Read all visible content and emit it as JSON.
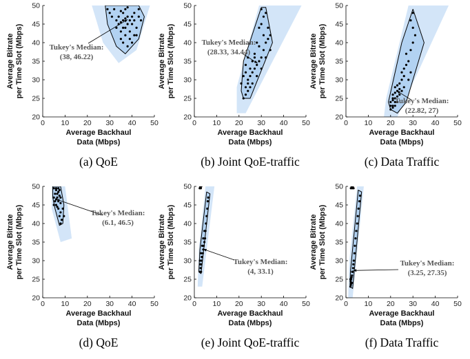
{
  "figure": {
    "panels": [
      {
        "caption": "(a) QoE",
        "xlabel_line1": "Average Backhaul",
        "xlabel_line2": "Data (Mbps)",
        "ylabel_line1": "Average Bitrate",
        "ylabel_line2": "per Time Slot (Mbps)",
        "annot_line1": "Tukey's Median:",
        "annot_line2": "(38, 46.22)"
      },
      {
        "caption": "(b) Joint QoE-traffic",
        "xlabel_line1": "Average Backhaul",
        "xlabel_line2": "Data (Mbps)",
        "ylabel_line1": "Average Bitrate",
        "ylabel_line2": "per Time Slot (Mbps)",
        "annot_line1": "Tukey's Median:",
        "annot_line2": "(28.33, 34.44)"
      },
      {
        "caption": "(c) Data Traffic",
        "xlabel_line1": "Average Backhaul",
        "xlabel_line2": "Data (Mbps)",
        "ylabel_line1": "Average Bitrate",
        "ylabel_line2": "per Time Slot (Mbps)",
        "annot_line1": "Tukey's Median:",
        "annot_line2": "(22.82, 27)"
      },
      {
        "caption": "(d) QoE",
        "xlabel_line1": "Average Backhaul",
        "xlabel_line2": "Data (Mbps)",
        "ylabel_line1": "Average Bitrate",
        "ylabel_line2": "per Time Slot (Mbps)",
        "annot_line1": "Tukey's Median:",
        "annot_line2": "(6.1, 46.5)"
      },
      {
        "caption": "(e) Joint QoE-traffic",
        "xlabel_line1": "Average Backhaul",
        "xlabel_line2": "Data (Mbps)",
        "ylabel_line1": "Average Bitrate",
        "ylabel_line2": "per Time Slot (Mbps)",
        "annot_line1": "Tukey's Median:",
        "annot_line2": "(4, 33.1)"
      },
      {
        "caption": "(f) Data Traffic",
        "xlabel_line1": "Average Backhaul",
        "xlabel_line2": "Data (Mbps)",
        "ylabel_line1": "Average Bitrate",
        "ylabel_line2": "per Time Slot (Mbps)",
        "annot_line1": "Tukey's Median:",
        "annot_line2": "(3.25, 27.35)"
      }
    ]
  },
  "colors": {
    "cone_fill": "#d3e5f8",
    "hull_fill": "#b2d2f2",
    "hull_stroke": "#000000",
    "point": "#000000",
    "axis": "#000000"
  },
  "chart_data": [
    {
      "type": "scatter",
      "xlim": [
        0,
        50
      ],
      "ylim": [
        20,
        50
      ],
      "xticks": [
        0,
        10,
        20,
        30,
        40,
        50
      ],
      "yticks": [
        20,
        25,
        30,
        35,
        40,
        45,
        50
      ],
      "median": [
        38,
        46.22
      ],
      "cone": [
        [
          22,
          50
        ],
        [
          48,
          50
        ],
        [
          42,
          38
        ],
        [
          34,
          34.5
        ],
        [
          27,
          40
        ]
      ],
      "hull": [
        [
          28,
          50
        ],
        [
          43,
          50
        ],
        [
          45.5,
          47
        ],
        [
          43,
          41
        ],
        [
          37,
          37
        ],
        [
          33,
          39
        ],
        [
          29,
          45
        ]
      ],
      "points": [
        [
          32,
          49
        ],
        [
          35,
          48.5
        ],
        [
          38,
          49.5
        ],
        [
          41,
          48
        ],
        [
          43,
          47
        ],
        [
          36,
          46
        ],
        [
          34,
          45
        ],
        [
          40,
          45
        ],
        [
          39,
          43
        ],
        [
          37,
          42
        ],
        [
          35,
          41
        ],
        [
          33,
          44
        ],
        [
          31,
          47
        ],
        [
          30,
          48
        ],
        [
          42,
          44
        ],
        [
          44,
          46
        ],
        [
          36,
          48
        ],
        [
          38,
          47
        ],
        [
          40,
          47
        ],
        [
          33,
          46
        ],
        [
          37,
          44
        ],
        [
          39,
          46
        ],
        [
          41,
          46
        ],
        [
          35,
          43
        ],
        [
          36,
          40
        ],
        [
          38,
          39
        ],
        [
          40,
          40
        ],
        [
          42,
          42
        ],
        [
          34,
          47
        ],
        [
          29,
          49
        ],
        [
          43,
          49
        ],
        [
          37,
          49
        ],
        [
          36,
          44
        ],
        [
          38,
          45
        ],
        [
          39,
          41
        ],
        [
          41,
          42
        ],
        [
          37,
          46.5
        ],
        [
          35,
          45.5
        ]
      ]
    },
    {
      "type": "scatter",
      "xlim": [
        0,
        50
      ],
      "ylim": [
        20,
        50
      ],
      "xticks": [
        0,
        10,
        20,
        30,
        40,
        50
      ],
      "yticks": [
        20,
        25,
        30,
        35,
        40,
        45,
        50
      ],
      "median": [
        28.33,
        34.44
      ],
      "cone": [
        [
          19,
          21
        ],
        [
          23,
          21
        ],
        [
          48,
          50
        ],
        [
          29,
          50
        ],
        [
          19,
          28
        ]
      ],
      "hull": [
        [
          22,
          25
        ],
        [
          25,
          25
        ],
        [
          35,
          40
        ],
        [
          32,
          49.5
        ],
        [
          30,
          49.5
        ],
        [
          22,
          35
        ],
        [
          21,
          27
        ]
      ],
      "points": [
        [
          22,
          25
        ],
        [
          23,
          26
        ],
        [
          24,
          27
        ],
        [
          23,
          28
        ],
        [
          24,
          30
        ],
        [
          25,
          31
        ],
        [
          26,
          32
        ],
        [
          27,
          33
        ],
        [
          28,
          34
        ],
        [
          29,
          35
        ],
        [
          30,
          36
        ],
        [
          31,
          38
        ],
        [
          32,
          40
        ],
        [
          33,
          41
        ],
        [
          34,
          42
        ],
        [
          30,
          45
        ],
        [
          31,
          47
        ],
        [
          32,
          48
        ],
        [
          30,
          49
        ],
        [
          29,
          44
        ],
        [
          28,
          40
        ],
        [
          27,
          37
        ],
        [
          26,
          35
        ],
        [
          25,
          33
        ],
        [
          24,
          36
        ],
        [
          23,
          34
        ],
        [
          22,
          31
        ],
        [
          24,
          29
        ],
        [
          26,
          29
        ],
        [
          28,
          31
        ],
        [
          30,
          33
        ],
        [
          32,
          36
        ],
        [
          34,
          38
        ],
        [
          33,
          44
        ],
        [
          31,
          42
        ],
        [
          29,
          39
        ],
        [
          27,
          36
        ],
        [
          23,
          32
        ],
        [
          25,
          28
        ],
        [
          21,
          29
        ]
      ]
    },
    {
      "type": "scatter",
      "xlim": [
        0,
        50
      ],
      "ylim": [
        20,
        50
      ],
      "xticks": [
        0,
        10,
        20,
        30,
        40,
        50
      ],
      "yticks": [
        20,
        25,
        30,
        35,
        40,
        45,
        50
      ],
      "median": [
        22.82,
        27
      ],
      "cone": [
        [
          17,
          20
        ],
        [
          23,
          20
        ],
        [
          46,
          50
        ],
        [
          28,
          50
        ],
        [
          18,
          25
        ]
      ],
      "hull": [
        [
          20,
          22
        ],
        [
          23,
          21
        ],
        [
          27,
          24
        ],
        [
          35,
          40
        ],
        [
          30,
          49
        ],
        [
          25,
          40
        ],
        [
          19,
          24
        ]
      ],
      "points": [
        [
          20,
          22
        ],
        [
          21,
          23
        ],
        [
          22,
          23
        ],
        [
          20,
          24
        ],
        [
          21,
          24.5
        ],
        [
          22,
          25
        ],
        [
          23,
          25.5
        ],
        [
          21,
          26
        ],
        [
          22,
          26.5
        ],
        [
          23,
          27
        ],
        [
          24,
          27.5
        ],
        [
          22,
          28
        ],
        [
          23,
          28.5
        ],
        [
          24,
          29
        ],
        [
          25,
          30
        ],
        [
          26,
          31
        ],
        [
          25,
          32
        ],
        [
          26,
          33
        ],
        [
          27,
          34
        ],
        [
          28,
          35
        ],
        [
          27,
          37
        ],
        [
          29,
          38
        ],
        [
          30,
          40
        ],
        [
          31,
          42
        ],
        [
          30,
          44
        ],
        [
          29,
          46
        ],
        [
          30,
          48
        ],
        [
          21,
          22.5
        ],
        [
          20,
          23
        ],
        [
          22,
          24
        ],
        [
          23,
          24
        ],
        [
          21,
          25
        ],
        [
          24,
          26
        ],
        [
          25,
          27
        ],
        [
          26,
          28
        ],
        [
          28,
          30
        ],
        [
          29,
          32
        ]
      ]
    },
    {
      "type": "scatter",
      "xlim": [
        0,
        50
      ],
      "ylim": [
        20,
        50
      ],
      "xticks": [
        0,
        10,
        20,
        30,
        40,
        50
      ],
      "yticks": [
        20,
        25,
        30,
        35,
        40,
        45,
        50
      ],
      "median": [
        6.1,
        46.5
      ],
      "cone": [
        [
          4,
          50
        ],
        [
          10,
          50
        ],
        [
          13,
          36
        ],
        [
          8,
          35
        ],
        [
          4,
          44
        ]
      ],
      "hull": [
        [
          4.5,
          50
        ],
        [
          8,
          50
        ],
        [
          9.5,
          45
        ],
        [
          9,
          40
        ],
        [
          7.5,
          39.5
        ],
        [
          5.5,
          44
        ],
        [
          4.5,
          47
        ]
      ],
      "points": [
        [
          5,
          49.5
        ],
        [
          6,
          49
        ],
        [
          7,
          49.5
        ],
        [
          5.5,
          48
        ],
        [
          6.5,
          48
        ],
        [
          7.5,
          47.5
        ],
        [
          5,
          47
        ],
        [
          6,
          46.5
        ],
        [
          7,
          46
        ],
        [
          8,
          45.5
        ],
        [
          6,
          45
        ],
        [
          7,
          44
        ],
        [
          8,
          43
        ],
        [
          7.5,
          42
        ],
        [
          8.5,
          41
        ],
        [
          5.5,
          46
        ],
        [
          6.5,
          47
        ],
        [
          7,
          48.5
        ],
        [
          5,
          45
        ],
        [
          6.5,
          44.5
        ],
        [
          8,
          47
        ],
        [
          9,
          44
        ],
        [
          9.5,
          42
        ],
        [
          8,
          40
        ],
        [
          6,
          49.5
        ],
        [
          7.5,
          49
        ]
      ]
    },
    {
      "type": "scatter",
      "xlim": [
        0,
        50
      ],
      "ylim": [
        20,
        50
      ],
      "xticks": [
        0,
        10,
        20,
        30,
        40,
        50
      ],
      "yticks": [
        20,
        25,
        30,
        35,
        40,
        45,
        50
      ],
      "median": [
        4,
        33.1
      ],
      "cone": [
        [
          1.5,
          23
        ],
        [
          3.5,
          23
        ],
        [
          9,
          50
        ],
        [
          5,
          50
        ],
        [
          2,
          33
        ]
      ],
      "hull": [
        [
          2,
          27
        ],
        [
          3,
          26.5
        ],
        [
          7,
          48
        ],
        [
          5.5,
          48.5
        ],
        [
          2.5,
          33
        ]
      ],
      "points": [
        [
          2.5,
          27
        ],
        [
          2.8,
          28
        ],
        [
          3,
          29
        ],
        [
          3.2,
          30
        ],
        [
          3.5,
          31
        ],
        [
          3.8,
          32
        ],
        [
          4,
          33
        ],
        [
          4.2,
          34
        ],
        [
          4.5,
          35
        ],
        [
          4.8,
          36
        ],
        [
          5,
          38
        ],
        [
          5.2,
          40
        ],
        [
          5.5,
          42
        ],
        [
          5.8,
          44
        ],
        [
          6,
          46
        ],
        [
          6.2,
          47
        ],
        [
          2.5,
          30
        ],
        [
          3,
          32
        ],
        [
          3.5,
          34
        ],
        [
          4,
          36
        ],
        [
          4.5,
          38
        ],
        [
          3,
          27
        ],
        [
          2.7,
          29
        ],
        [
          3.3,
          31
        ],
        [
          2.4,
          49.5
        ],
        [
          2.6,
          50
        ],
        [
          2.9,
          49.5
        ],
        [
          3.1,
          50
        ]
      ]
    },
    {
      "type": "scatter",
      "xlim": [
        0,
        50
      ],
      "ylim": [
        20,
        50
      ],
      "xticks": [
        0,
        10,
        20,
        30,
        40,
        50
      ],
      "yticks": [
        20,
        25,
        30,
        35,
        40,
        45,
        50
      ],
      "median": [
        3.25,
        27.35
      ],
      "cone": [
        [
          1,
          20
        ],
        [
          3,
          20
        ],
        [
          8,
          50
        ],
        [
          5,
          50
        ],
        [
          1.5,
          30
        ]
      ],
      "hull": [
        [
          1.8,
          23
        ],
        [
          3,
          22.5
        ],
        [
          7,
          48.5
        ],
        [
          5.5,
          49
        ],
        [
          2,
          27
        ]
      ],
      "points": [
        [
          2,
          23
        ],
        [
          2.2,
          23.5
        ],
        [
          2.4,
          24
        ],
        [
          2.1,
          24.5
        ],
        [
          2.3,
          25
        ],
        [
          2.5,
          25.5
        ],
        [
          2.7,
          26
        ],
        [
          3,
          27
        ],
        [
          3.2,
          28
        ],
        [
          3.5,
          30
        ],
        [
          3.8,
          32
        ],
        [
          4,
          34
        ],
        [
          4.3,
          36
        ],
        [
          4.6,
          38
        ],
        [
          5,
          40
        ],
        [
          5.3,
          42
        ],
        [
          5.6,
          44
        ],
        [
          6,
          46
        ],
        [
          6.3,
          47.5
        ],
        [
          2,
          25
        ],
        [
          2.6,
          24
        ],
        [
          2.8,
          27
        ],
        [
          3.3,
          29
        ],
        [
          2.2,
          49.5
        ],
        [
          2.5,
          50
        ],
        [
          2.8,
          49.5
        ],
        [
          3.1,
          50
        ],
        [
          3.4,
          49.5
        ]
      ]
    }
  ]
}
